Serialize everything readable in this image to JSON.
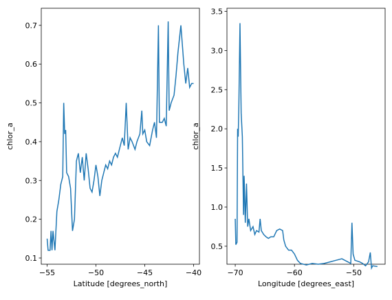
{
  "chart_data": [
    {
      "type": "line",
      "xlabel": "Latitude [degrees_north]",
      "ylabel": "chlor_a",
      "color": "#1f77b4",
      "xlim": [
        -55.6,
        -39.4
      ],
      "ylim": [
        0.084,
        0.744
      ],
      "xticks": [
        {
          "value": -55,
          "label": "−55"
        },
        {
          "value": -50,
          "label": "−50"
        },
        {
          "value": -45,
          "label": "−45"
        },
        {
          "value": -40,
          "label": "−40"
        }
      ],
      "yticks": [
        0.1,
        0.2,
        0.3,
        0.4,
        0.5,
        0.6,
        0.7
      ],
      "x": [
        -55.0,
        -54.9,
        -54.7,
        -54.6,
        -54.5,
        -54.4,
        -54.2,
        -54.0,
        -53.8,
        -53.6,
        -53.4,
        -53.3,
        -53.2,
        -53.1,
        -53.0,
        -52.8,
        -52.6,
        -52.4,
        -52.2,
        -52.0,
        -51.8,
        -51.6,
        -51.4,
        -51.2,
        -51.0,
        -50.8,
        -50.6,
        -50.4,
        -50.2,
        -50.0,
        -49.8,
        -49.6,
        -49.4,
        -49.2,
        -49.0,
        -48.8,
        -48.6,
        -48.4,
        -48.2,
        -48.0,
        -47.8,
        -47.5,
        -47.3,
        -47.1,
        -46.9,
        -46.7,
        -46.5,
        -46.3,
        -46.0,
        -45.8,
        -45.5,
        -45.3,
        -45.2,
        -45.0,
        -44.8,
        -44.5,
        -44.2,
        -44.0,
        -43.8,
        -43.6,
        -43.5,
        -43.2,
        -43.0,
        -42.8,
        -42.6,
        -42.5,
        -42.3,
        -42.0,
        -41.8,
        -41.6,
        -41.3,
        -41.0,
        -40.8,
        -40.6,
        -40.4,
        -40.2,
        -40.0
      ],
      "values": [
        0.15,
        0.12,
        0.12,
        0.17,
        0.12,
        0.17,
        0.12,
        0.22,
        0.25,
        0.29,
        0.31,
        0.5,
        0.42,
        0.43,
        0.32,
        0.31,
        0.28,
        0.17,
        0.2,
        0.35,
        0.37,
        0.32,
        0.36,
        0.3,
        0.37,
        0.33,
        0.28,
        0.27,
        0.3,
        0.34,
        0.31,
        0.26,
        0.3,
        0.32,
        0.34,
        0.33,
        0.35,
        0.34,
        0.36,
        0.37,
        0.36,
        0.39,
        0.41,
        0.39,
        0.5,
        0.38,
        0.41,
        0.4,
        0.38,
        0.4,
        0.42,
        0.48,
        0.42,
        0.43,
        0.4,
        0.39,
        0.43,
        0.45,
        0.41,
        0.7,
        0.45,
        0.45,
        0.46,
        0.44,
        0.71,
        0.48,
        0.5,
        0.52,
        0.57,
        0.63,
        0.7,
        0.6,
        0.55,
        0.59,
        0.54,
        0.55,
        0.55
      ]
    },
    {
      "type": "line",
      "xlabel": "Longitude [degrees_east]",
      "ylabel": "chlor_a",
      "color": "#1f77b4",
      "xlim": [
        -71.4,
        -44.7
      ],
      "ylim": [
        0.27,
        3.54
      ],
      "xticks": [
        {
          "value": -70,
          "label": "−70"
        },
        {
          "value": -60,
          "label": "−60"
        },
        {
          "value": -50,
          "label": "−50"
        }
      ],
      "yticks": [
        0.5,
        {
          "value": 1,
          "label": "1.0"
        },
        1.5,
        {
          "value": 2,
          "label": "2.0"
        },
        2.5,
        {
          "value": 3,
          "label": "3.0"
        },
        3.5
      ],
      "x": [
        -70.0,
        -69.9,
        -69.7,
        -69.6,
        -69.5,
        -69.4,
        -69.2,
        -69.0,
        -68.8,
        -68.6,
        -68.5,
        -68.3,
        -68.1,
        -67.9,
        -67.7,
        -67.4,
        -67.0,
        -66.7,
        -66.4,
        -66.0,
        -65.8,
        -65.6,
        -65.2,
        -64.8,
        -64.4,
        -64.0,
        -63.5,
        -63.0,
        -62.5,
        -62.0,
        -61.8,
        -61.5,
        -61.0,
        -60.5,
        -60.0,
        -59.5,
        -59.0,
        -58.0,
        -57.0,
        -56.0,
        -55.0,
        -54.0,
        -53.0,
        -52.0,
        -51.0,
        -50.5,
        -50.3,
        -50.1,
        -49.8,
        -49.0,
        -48.5,
        -48.0,
        -47.5,
        -47.2,
        -47.0,
        -46.8,
        -46.0
      ],
      "values": [
        0.85,
        0.52,
        0.55,
        2.0,
        1.9,
        2.25,
        3.35,
        2.2,
        1.9,
        0.9,
        1.4,
        0.8,
        1.3,
        0.75,
        0.85,
        0.7,
        0.75,
        0.65,
        0.7,
        0.68,
        0.85,
        0.7,
        0.65,
        0.62,
        0.6,
        0.62,
        0.62,
        0.7,
        0.72,
        0.7,
        0.58,
        0.5,
        0.45,
        0.45,
        0.4,
        0.32,
        0.28,
        0.26,
        0.28,
        0.27,
        0.28,
        0.3,
        0.32,
        0.34,
        0.3,
        0.28,
        0.8,
        0.4,
        0.32,
        0.3,
        0.28,
        0.25,
        0.3,
        0.42,
        0.22,
        0.25,
        0.24
      ]
    }
  ]
}
